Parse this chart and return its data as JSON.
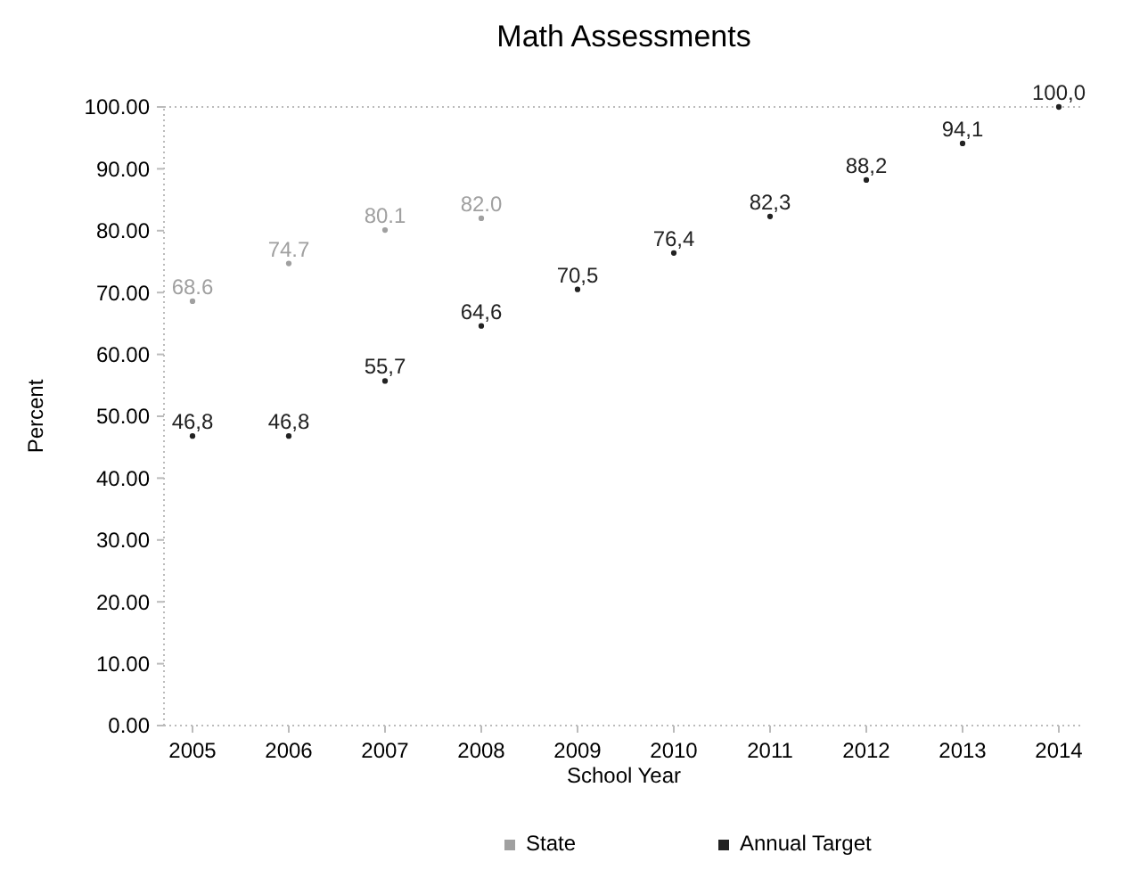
{
  "chart_data": {
    "type": "scatter",
    "title": "Math Assessments",
    "xlabel": "School Year",
    "ylabel": "Percent",
    "categories": [
      "2005",
      "2006",
      "2007",
      "2008",
      "2009",
      "2010",
      "2011",
      "2012",
      "2013",
      "2014"
    ],
    "series": [
      {
        "name": "Annual Target",
        "color": "#222222",
        "values": [
          46.8,
          46.8,
          55.7,
          64.6,
          70.5,
          76.4,
          82.3,
          88.2,
          94.1,
          100.0
        ],
        "value_labels": [
          "46,8",
          "46,8",
          "55,7",
          "64,6",
          "70,5",
          "76,4",
          "82,3",
          "88,2",
          "94,1",
          "100,0"
        ]
      },
      {
        "name": "State",
        "color": "#a0a0a0",
        "values": [
          68.6,
          74.7,
          80.1,
          82.0,
          null,
          null,
          null,
          null,
          null,
          null
        ],
        "value_labels": [
          "68.6",
          "74.7",
          "80.1",
          "82.0",
          null,
          null,
          null,
          null,
          null,
          null
        ]
      }
    ],
    "ylim": [
      0,
      100
    ],
    "yticks": [
      {
        "value": 0,
        "label": "0.00"
      },
      {
        "value": 10,
        "label": "10.00"
      },
      {
        "value": 20,
        "label": "20.00"
      },
      {
        "value": 30,
        "label": "30.00"
      },
      {
        "value": 40,
        "label": "40.00"
      },
      {
        "value": 50,
        "label": "50.00"
      },
      {
        "value": 60,
        "label": "60.00"
      },
      {
        "value": 70,
        "label": "70.00"
      },
      {
        "value": 80,
        "label": "80.00"
      },
      {
        "value": 90,
        "label": "90.00"
      },
      {
        "value": 100,
        "label": "100.00"
      }
    ],
    "marker": "circle",
    "legend": "bottom"
  }
}
